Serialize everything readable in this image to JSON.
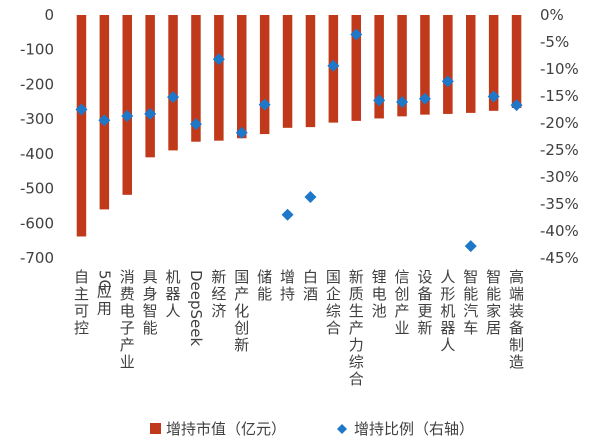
{
  "chart_data": {
    "type": "bar",
    "categories": [
      "自主可控",
      "5G应用",
      "消费电子产业",
      "具身智能",
      "机器人",
      "DeepSeek",
      "新经济",
      "国产化创新",
      "储能",
      "增持",
      "白酒",
      "国企综合",
      "新质生产力综合",
      "锂电池",
      "信创产业",
      "设备更新",
      "人形机器人",
      "智能汽车",
      "智能家居",
      "高端装备制造"
    ],
    "series": [
      {
        "name": "增持市值（亿元）",
        "type": "bar",
        "axis": "left",
        "color": "#C0391B",
        "values": [
          -638,
          -560,
          -518,
          -410,
          -390,
          -365,
          -362,
          -355,
          -343,
          -325,
          -323,
          -310,
          -305,
          -298,
          -292,
          -287,
          -285,
          -282,
          -276,
          -268
        ]
      },
      {
        "name": "增持比例（右轴）",
        "type": "scatter",
        "axis": "right",
        "marker": "diamond",
        "color": "#1F77C8",
        "values": [
          -17.5,
          -19.5,
          -18.7,
          -18.3,
          -15.2,
          -20.2,
          -8.2,
          -21.8,
          -16.6,
          -37.0,
          -33.7,
          -9.4,
          -3.6,
          -15.8,
          -16.1,
          -15.5,
          -12.3,
          -42.8,
          -15.1,
          -16.7
        ]
      }
    ],
    "y_left": {
      "lim": [
        -700,
        0
      ],
      "ticks": [
        "0",
        "-100",
        "-200",
        "-300",
        "-400",
        "-500",
        "-600",
        "-700"
      ]
    },
    "y_right": {
      "lim": [
        -45,
        0
      ],
      "ticks": [
        "0%",
        "-5%",
        "-10%",
        "-15%",
        "-20%",
        "-25%",
        "-30%",
        "-35%",
        "-40%",
        "-45%"
      ]
    },
    "grid": false,
    "legend_position": "bottom"
  }
}
